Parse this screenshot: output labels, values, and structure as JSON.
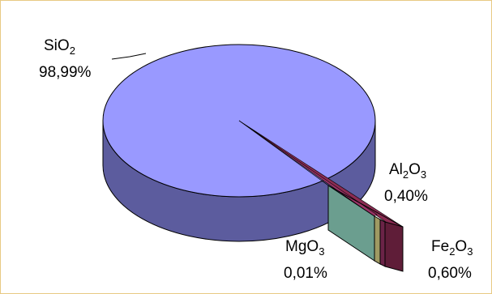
{
  "chart_data": {
    "type": "pie",
    "style": "3d-exploded",
    "title": "",
    "slices": [
      {
        "name": "SiO",
        "subscript": "2",
        "value": 98.99,
        "value_label": "98,99%",
        "color": "#9999ff",
        "side_color": "#5c5c9e"
      },
      {
        "name": "Al",
        "subscript": "2",
        "name2": "O",
        "subscript2": "3",
        "value": 0.4,
        "value_label": "0,40%",
        "color": "#993366",
        "side_color": "#6b2347"
      },
      {
        "name": "Fe",
        "subscript": "2",
        "name2": "O",
        "subscript2": "3",
        "value": 0.6,
        "value_label": "0,60%",
        "color": "#8b2b52",
        "side_color": "#5f1d38"
      },
      {
        "name": "MgO",
        "subscript": "3",
        "value": 0.01,
        "value_label": "0,01%",
        "color": "#ccc58a",
        "side_color": "#9f9a63"
      }
    ],
    "legend": "none",
    "frame_color": "#e8c983"
  }
}
